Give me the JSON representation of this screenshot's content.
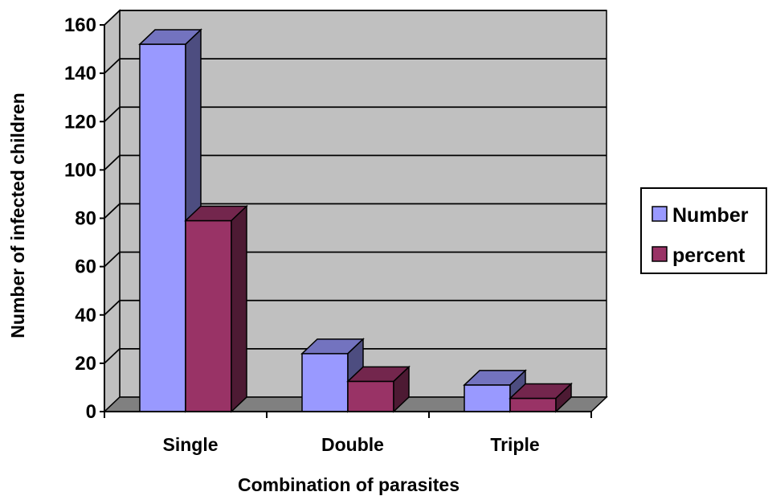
{
  "chart_data": {
    "type": "bar",
    "title": "",
    "xlabel": "Combination of parasites",
    "ylabel": "Number of infected children",
    "categories": [
      "Single",
      "Double",
      "Triple"
    ],
    "series": [
      {
        "name": "Number",
        "values": [
          152,
          24,
          11
        ],
        "color": "#9999ff"
      },
      {
        "name": "percent",
        "values": [
          79,
          12.5,
          5.5
        ],
        "color": "#993366"
      }
    ],
    "ylim": [
      0,
      160
    ],
    "yticks": [
      "0",
      "20",
      "40",
      "60",
      "80",
      "100",
      "120",
      "140",
      "160"
    ],
    "grid": true,
    "legend_position": "right",
    "style": "3d-clustered",
    "colors": {
      "wall": "#c0c0c0",
      "floor": "#808080",
      "gridline": "#000000"
    }
  }
}
